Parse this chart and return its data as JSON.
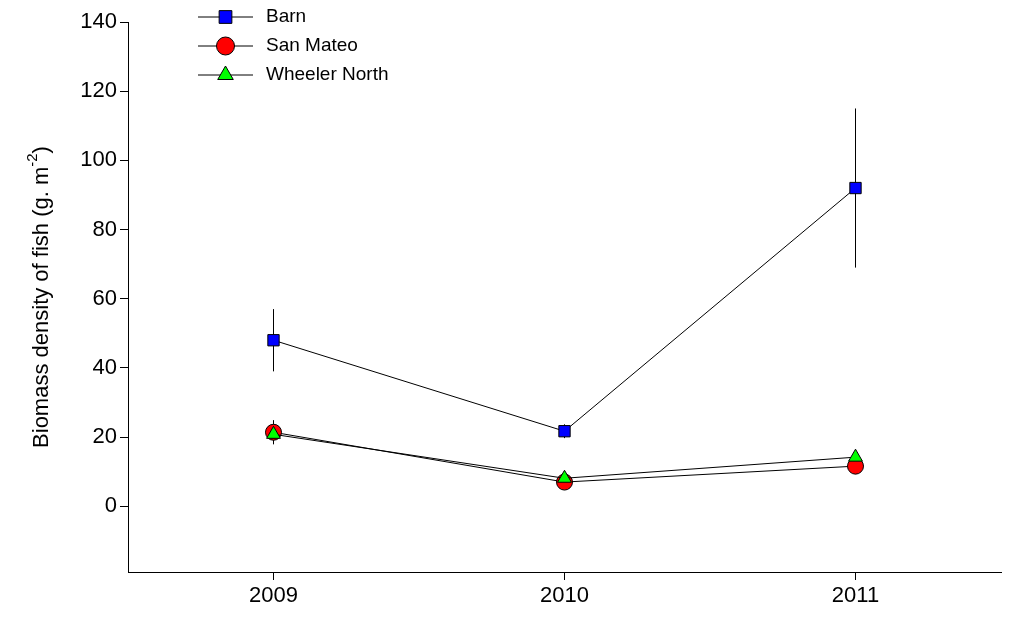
{
  "chart_data": {
    "type": "line",
    "ylabel": "Biomass density of fish (g. m$^{-2}$)",
    "x": [
      2009,
      2010,
      2011
    ],
    "xlim": [
      2008.5,
      2011.5
    ],
    "xticks": [
      2009,
      2010,
      2011
    ],
    "ylim": [
      -19,
      140
    ],
    "yticks": [
      0,
      20,
      40,
      60,
      80,
      100,
      120,
      140
    ],
    "grid": false,
    "legend": "top left",
    "line_style": "solid",
    "series": [
      {
        "name": "Barn",
        "color": "#0000ff",
        "marker": "square",
        "values": [
          48,
          21.7,
          92
        ],
        "errors": [
          9,
          2,
          23
        ]
      },
      {
        "name": "San Mateo",
        "color": "#ff0000",
        "marker": "circle",
        "values": [
          21.4,
          7,
          11.6
        ],
        "errors": [
          3.5,
          null,
          null
        ]
      },
      {
        "name": "Wheeler North",
        "color": "#00ff00",
        "marker": "triangle",
        "values": [
          20.8,
          8.1,
          14.2
        ]
      }
    ]
  }
}
